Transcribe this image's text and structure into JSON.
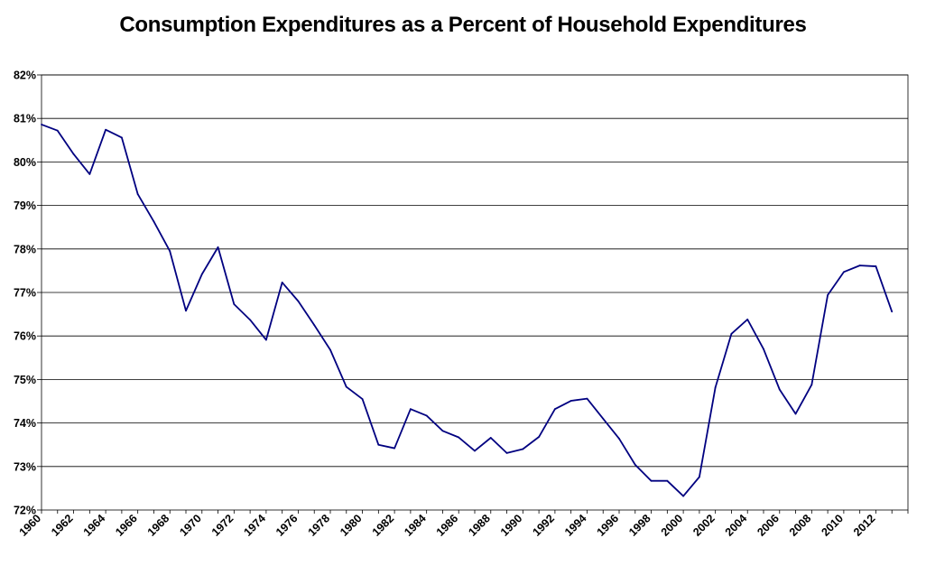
{
  "chart_data": {
    "type": "line",
    "title": "Consumption Expenditures as a Percent of Household Expenditures",
    "xlabel": "",
    "ylabel": "",
    "ylim": [
      72,
      82
    ],
    "xlim": [
      1960,
      2014
    ],
    "grid": "horizontal",
    "legend": "none",
    "line_color": "#000080",
    "y_ticks": [
      "72%",
      "73%",
      "74%",
      "75%",
      "76%",
      "77%",
      "78%",
      "79%",
      "80%",
      "81%",
      "82%"
    ],
    "x_ticks": [
      "1960",
      "1962",
      "1964",
      "1966",
      "1968",
      "1970",
      "1972",
      "1974",
      "1976",
      "1978",
      "1980",
      "1982",
      "1984",
      "1986",
      "1988",
      "1990",
      "1992",
      "1994",
      "1996",
      "1998",
      "2000",
      "2002",
      "2004",
      "2006",
      "2008",
      "2010",
      "2012"
    ],
    "series": [
      {
        "x": [
          1960,
          1961,
          1962,
          1963,
          1964,
          1965,
          1966,
          1967,
          1968,
          1969,
          1970,
          1971,
          1972,
          1973,
          1974,
          1975,
          1976,
          1977,
          1978,
          1979,
          1980,
          1981,
          1982,
          1983,
          1984,
          1985,
          1986,
          1987,
          1988,
          1989,
          1990,
          1991,
          1992,
          1993,
          1994,
          1995,
          1996,
          1997,
          1998,
          1999,
          2000,
          2001,
          2002,
          2003,
          2004,
          2005,
          2006,
          2007,
          2008,
          2009,
          2010,
          2011,
          2012,
          2013
        ],
        "values": [
          80.86,
          80.72,
          80.18,
          79.72,
          80.74,
          80.56,
          79.26,
          78.63,
          77.95,
          76.58,
          77.42,
          78.04,
          76.73,
          76.37,
          75.91,
          77.23,
          76.8,
          76.25,
          75.68,
          74.83,
          74.55,
          73.5,
          73.42,
          74.32,
          74.17,
          73.82,
          73.67,
          73.36,
          73.66,
          73.31,
          73.4,
          73.68,
          74.32,
          74.51,
          74.56,
          74.1,
          73.64,
          73.04,
          72.67,
          72.67,
          72.32,
          72.76,
          74.82,
          76.05,
          76.38,
          75.7,
          74.77,
          74.21,
          74.88,
          76.94,
          77.47,
          77.62,
          77.6,
          76.56
        ]
      }
    ]
  }
}
